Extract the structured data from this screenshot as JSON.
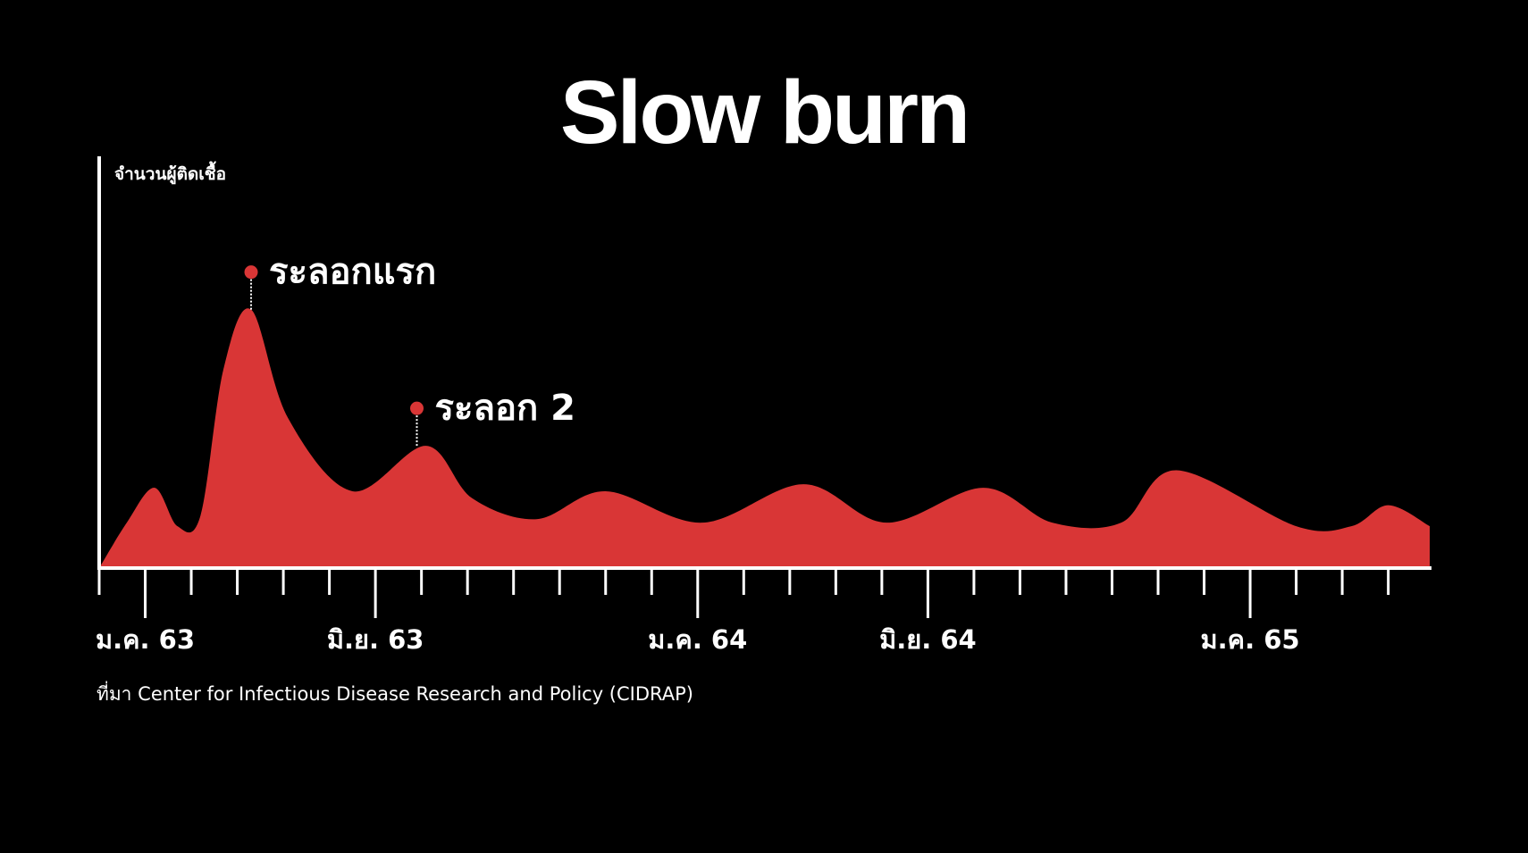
{
  "chart_data": {
    "type": "area",
    "title": "Slow burn",
    "ylabel": "จำนวนผู้ติดเชื้อ",
    "xlabel": "",
    "source": "ที่มา Center for Infectious Disease Research and Policy (CIDRAP)",
    "x_ticks": [
      "ม.ค. 63",
      "มิ.ย. 63",
      "ม.ค. 64",
      "มิ.ย. 64",
      "ม.ค. 65"
    ],
    "x_tick_months": [
      1,
      6,
      13,
      18,
      25
    ],
    "xlim": [
      0,
      28.9
    ],
    "ylim": [
      0,
      100
    ],
    "grid": false,
    "legend": "none",
    "fill_color": "#d93636",
    "axis_color": "#ffffff",
    "background": "#000000",
    "series": [
      {
        "values": [
          [
            0,
            0
          ],
          [
            0.6,
            13
          ],
          [
            1.2,
            23
          ],
          [
            1.7,
            12
          ],
          [
            2.2,
            15
          ],
          [
            2.7,
            57
          ],
          [
            3.3,
            74
          ],
          [
            4.1,
            43
          ],
          [
            5.5,
            22
          ],
          [
            7.1,
            35
          ],
          [
            8.1,
            20
          ],
          [
            9.5,
            14
          ],
          [
            11,
            22
          ],
          [
            13.1,
            13
          ],
          [
            15.3,
            24
          ],
          [
            17.1,
            13
          ],
          [
            19.2,
            23
          ],
          [
            20.7,
            13
          ],
          [
            22.2,
            13
          ],
          [
            23.4,
            28
          ],
          [
            26,
            12
          ],
          [
            27.2,
            12
          ],
          [
            28,
            18
          ],
          [
            28.9,
            12
          ]
        ]
      }
    ],
    "annotations": [
      {
        "label": "ระลอกแรก",
        "x": 3.3,
        "y": 74
      },
      {
        "label": "ระลอก 2",
        "x": 6.9,
        "y": 35
      }
    ]
  }
}
